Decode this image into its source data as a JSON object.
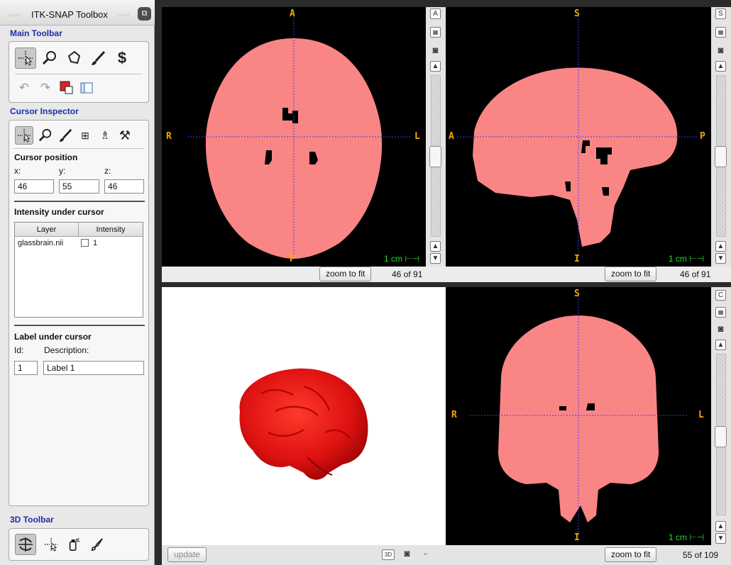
{
  "toolbox": {
    "title": "ITK-SNAP Toolbox",
    "sections": {
      "main_toolbar": "Main Toolbar",
      "cursor_inspector": "Cursor Inspector",
      "toolbar_3d": "3D Toolbar"
    },
    "cursor": {
      "heading": "Cursor position",
      "x_label": "x:",
      "y_label": "y:",
      "z_label": "z:",
      "x": "46",
      "y": "55",
      "z": "46"
    },
    "intensity": {
      "heading": "Intensity under cursor",
      "columns": [
        "Layer",
        "Intensity"
      ],
      "rows": [
        {
          "layer": "glassbrain.nii",
          "intensity": "1"
        }
      ]
    },
    "label": {
      "heading": "Label under cursor",
      "id_label": "Id:",
      "desc_label": "Description:",
      "id": "1",
      "description": "Label 1"
    },
    "colors": {
      "title": "#1d2ea8",
      "draw_label": "#e61e1e"
    }
  },
  "views": {
    "axial": {
      "top": "A",
      "bottom": "P",
      "left": "R",
      "right": "L",
      "scale": "1 cm",
      "side_button": "A",
      "zoom_button": "zoom to fit",
      "slice": "46 of 91"
    },
    "sagittal": {
      "top": "S",
      "bottom": "I",
      "left": "A",
      "right": "P",
      "scale": "1 cm",
      "side_button": "S",
      "zoom_button": "zoom to fit",
      "slice": "46 of 91"
    },
    "coronal": {
      "top": "S",
      "bottom": "I",
      "left": "R",
      "right": "L",
      "scale": "1 cm",
      "side_button": "C",
      "zoom_button": "zoom to fit",
      "slice": "55 of 109"
    },
    "render3d": {
      "update_button": "update",
      "mode_button": "3D"
    }
  },
  "colors": {
    "segmentation": "#fa8585",
    "crosshair": "#3a3aff",
    "orientation": "#f0a800",
    "scale_bar": "#22dd22",
    "mesh": "#dd1111"
  }
}
